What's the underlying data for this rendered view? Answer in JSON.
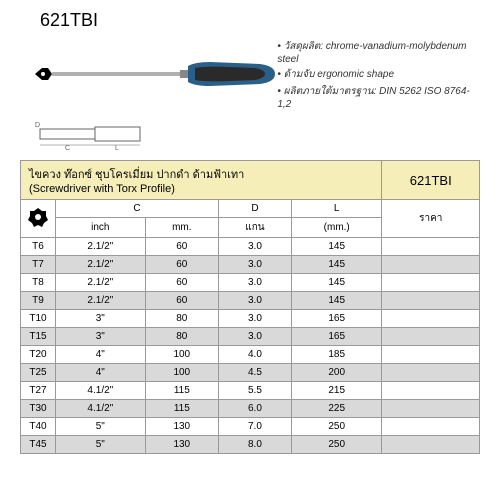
{
  "model_code": "621TBI",
  "specs": [
    "วัสดุผลิต: chrome-vanadium-molybdenum steel",
    "ด้ามจับ ergonomic shape",
    "ผลิตภายใต้มาตรฐาน: DIN 5262 ISO 8764-1,2"
  ],
  "table": {
    "title_thai": "ไขควง ท๊อกซ์ ชุบโครเมี่ยม ปากดำ ด้ามฟ้าเทา",
    "title_en": "(Screwdriver with Torx Profile)",
    "title_code": "621TBI",
    "headers": {
      "torx": "",
      "c": "C",
      "c_inch": "inch",
      "c_mm": "mm.",
      "d": "D",
      "d_sub": "แกน",
      "l": "L",
      "l_sub": "(mm.)",
      "price": "ราคา"
    },
    "rows": [
      {
        "size": "T6",
        "inch": "2.1/2\"",
        "mm": "60",
        "d": "3.0",
        "l": "145"
      },
      {
        "size": "T7",
        "inch": "2.1/2\"",
        "mm": "60",
        "d": "3.0",
        "l": "145"
      },
      {
        "size": "T8",
        "inch": "2.1/2\"",
        "mm": "60",
        "d": "3.0",
        "l": "145"
      },
      {
        "size": "T9",
        "inch": "2.1/2\"",
        "mm": "60",
        "d": "3.0",
        "l": "145"
      },
      {
        "size": "T10",
        "inch": "3\"",
        "mm": "80",
        "d": "3.0",
        "l": "165"
      },
      {
        "size": "T15",
        "inch": "3\"",
        "mm": "80",
        "d": "3.0",
        "l": "165"
      },
      {
        "size": "T20",
        "inch": "4\"",
        "mm": "100",
        "d": "4.0",
        "l": "185"
      },
      {
        "size": "T25",
        "inch": "4\"",
        "mm": "100",
        "d": "4.5",
        "l": "200"
      },
      {
        "size": "T27",
        "inch": "4.1/2\"",
        "mm": "115",
        "d": "5.5",
        "l": "215"
      },
      {
        "size": "T30",
        "inch": "4.1/2\"",
        "mm": "115",
        "d": "6.0",
        "l": "225"
      },
      {
        "size": "T40",
        "inch": "5\"",
        "mm": "130",
        "d": "7.0",
        "l": "250"
      },
      {
        "size": "T45",
        "inch": "5\"",
        "mm": "130",
        "d": "8.0",
        "l": "250"
      }
    ],
    "colors": {
      "title_bg": "#f5eeb8",
      "row_odd": "#ffffff",
      "row_even": "#d9d9d9",
      "border": "#999999"
    }
  },
  "screwdriver_colors": {
    "handle_main": "#2a5f8a",
    "handle_dark": "#2a2a2a",
    "shaft": "#b0b0b0"
  }
}
